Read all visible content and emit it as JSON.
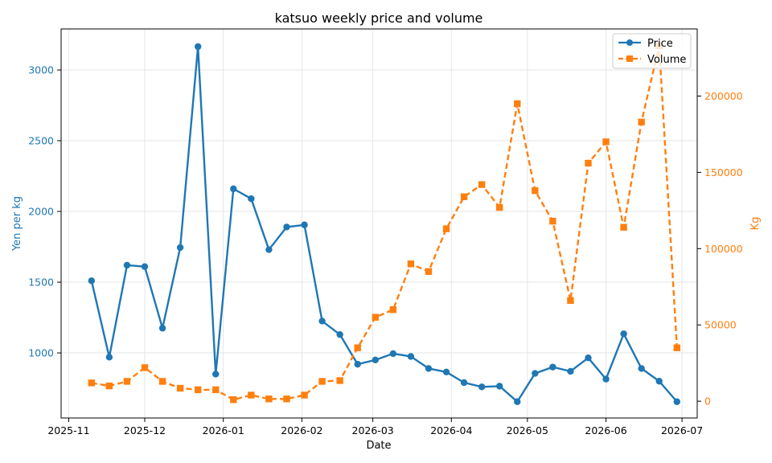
{
  "chart_data": {
    "type": "line",
    "title": "katsuo weekly price and volume",
    "xlabel": "Date",
    "ylabel": "Yen per kg",
    "y2label": "Kg",
    "x_ticks": [
      "2025-11",
      "2025-12",
      "2026-01",
      "2026-02",
      "2026-03",
      "2026-04",
      "2026-05",
      "2026-06",
      "2026-07"
    ],
    "y_ticks": [
      1000,
      1500,
      2000,
      2500,
      3000
    ],
    "y2_ticks": [
      0,
      50000,
      100000,
      150000,
      200000
    ],
    "ylim": [
      540,
      3290
    ],
    "y2lim": [
      -11000,
      244000
    ],
    "x": [
      "2025-11-10",
      "2025-11-17",
      "2025-11-24",
      "2025-12-01",
      "2025-12-08",
      "2025-12-15",
      "2025-12-22",
      "2025-12-29",
      "2026-01-05",
      "2026-01-12",
      "2026-01-19",
      "2026-01-26",
      "2026-02-02",
      "2026-02-09",
      "2026-02-16",
      "2026-02-23",
      "2026-03-02",
      "2026-03-09",
      "2026-03-16",
      "2026-03-23",
      "2026-03-30",
      "2026-04-06",
      "2026-04-13",
      "2026-04-20",
      "2026-04-27",
      "2026-05-04",
      "2026-05-11",
      "2026-05-18",
      "2026-05-25",
      "2026-06-01",
      "2026-06-08",
      "2026-06-15",
      "2026-06-22",
      "2026-06-29"
    ],
    "xlim": [
      "2025-10-29",
      "2026-07-07"
    ],
    "series": [
      {
        "name": "Price",
        "axis": "left",
        "color": "#1f77b4",
        "marker": "circle",
        "linestyle": "solid",
        "values": [
          1510,
          970,
          1620,
          1610,
          1175,
          1745,
          3165,
          850,
          2160,
          2090,
          1730,
          1890,
          1905,
          1225,
          1130,
          920,
          950,
          995,
          975,
          890,
          865,
          790,
          760,
          765,
          655,
          855,
          900,
          870,
          965,
          815,
          1135,
          890,
          800,
          655
        ]
      },
      {
        "name": "Volume",
        "axis": "right",
        "color": "#ff7f0e",
        "marker": "square",
        "linestyle": "dashed",
        "values": [
          12000,
          10000,
          13000,
          22000,
          13000,
          8500,
          7500,
          7500,
          1000,
          4000,
          1500,
          1500,
          4000,
          13000,
          13500,
          35000,
          55000,
          60000,
          90000,
          85000,
          113000,
          134000,
          142000,
          127000,
          195000,
          138000,
          118000,
          66000,
          156000,
          170000,
          114000,
          183000,
          233000,
          35000
        ]
      }
    ],
    "grid": true,
    "legend_position": "top-right"
  }
}
